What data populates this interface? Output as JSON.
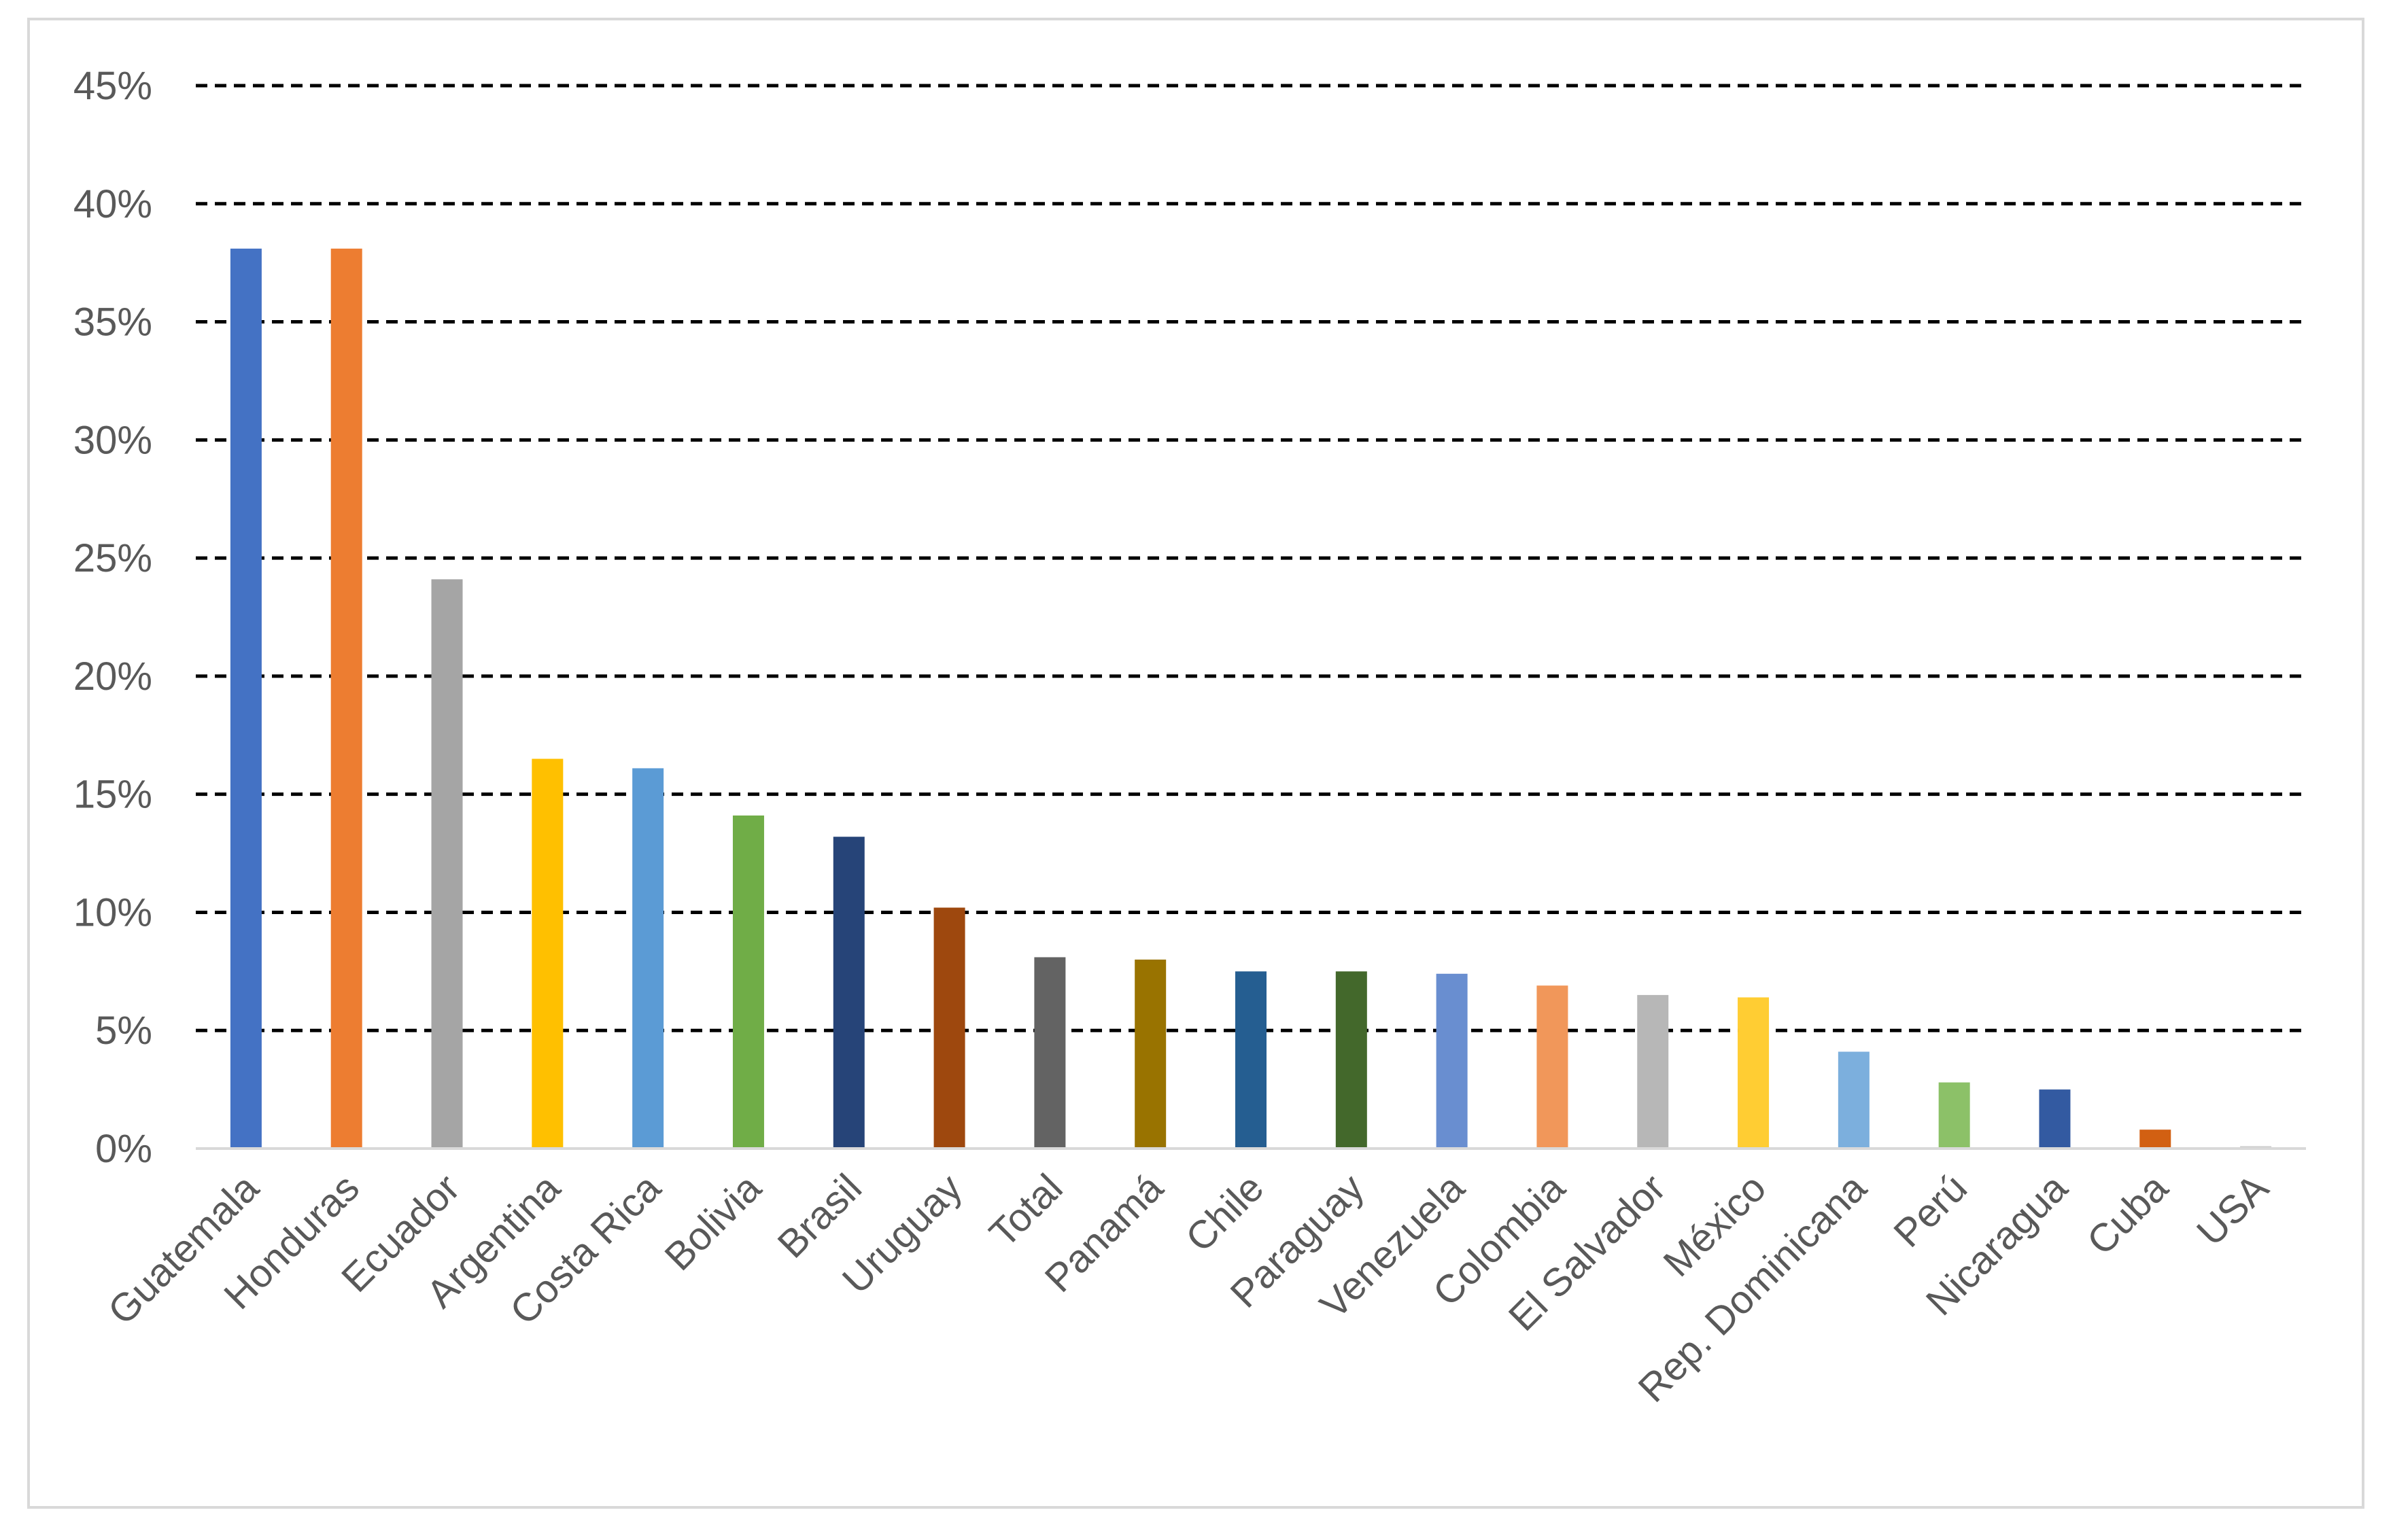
{
  "chart_data": {
    "type": "bar",
    "title": "",
    "xlabel": "",
    "ylabel": "",
    "ylim": [
      0,
      45
    ],
    "y_ticks": [
      "0%",
      "5%",
      "10%",
      "15%",
      "20%",
      "25%",
      "30%",
      "35%",
      "40%",
      "45%"
    ],
    "grid": "horizontal dashed",
    "categories": [
      "Guatemala",
      "Honduras",
      "Ecuador",
      "Argentina",
      "Costa Rica",
      "Bolivia",
      "Brasil",
      "Uruguay",
      "Total",
      "Panamá",
      "Chile",
      "Paraguay",
      "Venezuela",
      "Colombia",
      "El Salvador",
      "México",
      "Rep. Dominicana",
      "Perú",
      "Nicaragua",
      "Cuba",
      "USA"
    ],
    "values": [
      38.1,
      38.1,
      24.1,
      16.5,
      16.1,
      14.1,
      13.2,
      10.2,
      8.1,
      8.0,
      7.5,
      7.5,
      7.4,
      6.9,
      6.5,
      6.4,
      4.1,
      2.8,
      2.5,
      0.8,
      0.1
    ],
    "colors": [
      "#4472C4",
      "#ED7D31",
      "#A5A5A5",
      "#FFC000",
      "#5B9BD5",
      "#70AD47",
      "#264478",
      "#9E480E",
      "#636363",
      "#997300",
      "#255E91",
      "#43682B",
      "#698ED0",
      "#F1975A",
      "#B7B7B7",
      "#FFCD33",
      "#7CAFDD",
      "#8CC168",
      "#335AA1",
      "#D26012",
      "#CCCCCC"
    ]
  }
}
